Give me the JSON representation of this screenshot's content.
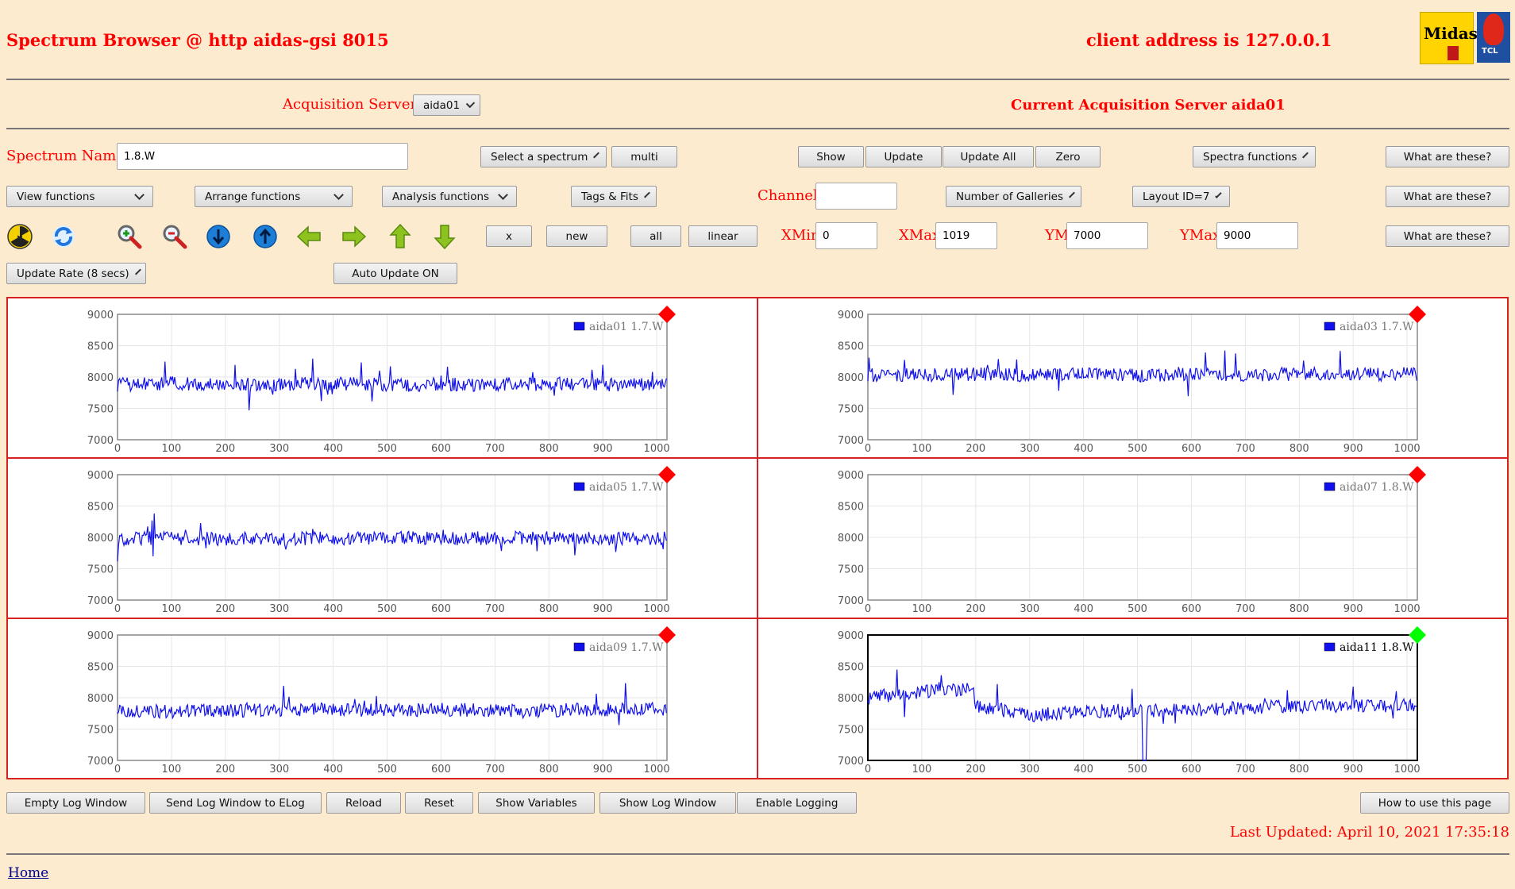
{
  "header": {
    "title": "Spectrum Browser @ http aidas-gsi 8015",
    "client": "client address is 127.0.0.1",
    "logo_midas": "Midas",
    "logo_tcl": "TCL"
  },
  "acquisition": {
    "label": "Acquisition Servers",
    "selected": "aida01",
    "current": "Current Acquisition Server aida01"
  },
  "row1": {
    "spectrum_label": "Spectrum Name:",
    "spectrum_value": "1.8.W",
    "select_spectrum": "Select a spectrum",
    "multi": "multi",
    "show": "Show",
    "update": "Update",
    "update_all": "Update All",
    "zero": "Zero",
    "spectra_functions": "Spectra functions",
    "what": "What are these?"
  },
  "row2": {
    "view": "View functions",
    "arrange": "Arrange functions",
    "analysis": "Analysis functions",
    "tags": "Tags & Fits",
    "channel_label": "Channel:",
    "channel_value": "",
    "galleries": "Number of Galleries",
    "layout": "Layout ID=7",
    "what": "What are these?"
  },
  "row3": {
    "icons": [
      "radiation-icon",
      "refresh-icon",
      "zoom-in-icon",
      "zoom-out-icon",
      "arrow-down-circle-icon",
      "arrow-up-circle-icon",
      "arrow-left-icon",
      "arrow-right-icon",
      "arrow-up-icon",
      "arrow-down-icon"
    ],
    "x": "x",
    "new": "new",
    "all": "all",
    "linear": "linear",
    "xmin_label": "XMin",
    "xmin": "0",
    "xmax_label": "XMax",
    "xmax": "1019",
    "ymin_label": "YMin",
    "ymin": "7000",
    "ymax_label": "YMax",
    "ymax": "9000",
    "what": "What are these?"
  },
  "row4": {
    "update_rate": "Update Rate (8 secs)",
    "auto_update": "Auto Update ON"
  },
  "chart_data": [
    {
      "type": "line",
      "legend": "aida01 1.7.W",
      "marker_color": "#ff0000",
      "selected": false,
      "flat": false,
      "xlim": [
        0,
        1019
      ],
      "ylim": [
        7000,
        9000
      ],
      "xticks": [
        "0",
        "100",
        "200",
        "300",
        "400",
        "500",
        "600",
        "700",
        "800",
        "900",
        "1000"
      ],
      "yticks": [
        "9000",
        "8500",
        "8000",
        "7500",
        "7000"
      ],
      "x": [
        0,
        100,
        200,
        300,
        400,
        500,
        600,
        700,
        800,
        900,
        1019
      ],
      "values": [
        7880,
        7900,
        7880,
        7880,
        7900,
        7870,
        7880,
        7880,
        7890,
        7880,
        7880
      ]
    },
    {
      "type": "line",
      "legend": "aida03 1.7.W",
      "marker_color": "#ff0000",
      "selected": false,
      "flat": false,
      "xlim": [
        0,
        1019
      ],
      "ylim": [
        7000,
        9000
      ],
      "xticks": [
        "0",
        "100",
        "200",
        "300",
        "400",
        "500",
        "600",
        "700",
        "800",
        "900",
        "1000"
      ],
      "yticks": [
        "9000",
        "8500",
        "8000",
        "7500",
        "7000"
      ],
      "x": [
        0,
        100,
        200,
        300,
        400,
        500,
        600,
        700,
        800,
        900,
        1019
      ],
      "values": [
        8030,
        8030,
        8040,
        8030,
        8040,
        8030,
        8040,
        8040,
        8050,
        8040,
        8050
      ]
    },
    {
      "type": "line",
      "legend": "aida05 1.7.W",
      "marker_color": "#ff0000",
      "selected": false,
      "flat": false,
      "xlim": [
        0,
        1019
      ],
      "ylim": [
        7000,
        9000
      ],
      "xticks": [
        "0",
        "100",
        "200",
        "300",
        "400",
        "500",
        "600",
        "700",
        "800",
        "900",
        "1000"
      ],
      "yticks": [
        "9000",
        "8500",
        "8000",
        "7500",
        "7000"
      ],
      "x": [
        0,
        100,
        200,
        300,
        400,
        500,
        600,
        700,
        800,
        900,
        1019
      ],
      "values": [
        7980,
        7990,
        7970,
        7980,
        7980,
        7990,
        7980,
        7990,
        7990,
        7980,
        7990
      ]
    },
    {
      "type": "line",
      "legend": "aida07 1.8.W",
      "marker_color": "#ff0000",
      "selected": false,
      "flat": true,
      "xlim": [
        0,
        1019
      ],
      "ylim": [
        7000,
        9000
      ],
      "xticks": [
        "0",
        "100",
        "200",
        "300",
        "400",
        "500",
        "600",
        "700",
        "800",
        "900",
        "1000"
      ],
      "yticks": [
        "9000",
        "8500",
        "8000",
        "7500",
        "7000"
      ],
      "x": [],
      "values": []
    },
    {
      "type": "line",
      "legend": "aida09 1.7.W",
      "marker_color": "#ff0000",
      "selected": false,
      "flat": false,
      "xlim": [
        0,
        1019
      ],
      "ylim": [
        7000,
        9000
      ],
      "xticks": [
        "0",
        "100",
        "200",
        "300",
        "400",
        "500",
        "600",
        "700",
        "800",
        "900",
        "1000"
      ],
      "yticks": [
        "9000",
        "8500",
        "8000",
        "7500",
        "7000"
      ],
      "x": [
        0,
        100,
        200,
        300,
        400,
        500,
        600,
        700,
        800,
        900,
        1019
      ],
      "values": [
        7800,
        7780,
        7790,
        7800,
        7820,
        7800,
        7810,
        7800,
        7800,
        7810,
        7810
      ]
    },
    {
      "type": "line",
      "legend": "aida11 1.8.W",
      "marker_color": "#00ff00",
      "selected": true,
      "flat": false,
      "xlim": [
        0,
        1019
      ],
      "ylim": [
        7000,
        9000
      ],
      "xticks": [
        "0",
        "100",
        "200",
        "300",
        "400",
        "500",
        "600",
        "700",
        "800",
        "900",
        "1000"
      ],
      "yticks": [
        "9000",
        "8500",
        "8000",
        "7500",
        "7000"
      ],
      "x": [
        0,
        100,
        190,
        200,
        300,
        400,
        500,
        600,
        700,
        800,
        900,
        1019
      ],
      "values": [
        8000,
        8100,
        8130,
        7880,
        7720,
        7780,
        7800,
        7800,
        7840,
        7860,
        7880,
        7880
      ]
    }
  ],
  "footer": {
    "empty_log": "Empty Log Window",
    "send_log": "Send Log Window to ELog",
    "reload": "Reload",
    "reset": "Reset",
    "show_vars": "Show Variables",
    "show_log": "Show Log Window",
    "enable_logging": "Enable Logging",
    "how_to": "How to use this page",
    "last_updated": "Last Updated: April 10, 2021 17:35:18",
    "home": "Home"
  }
}
